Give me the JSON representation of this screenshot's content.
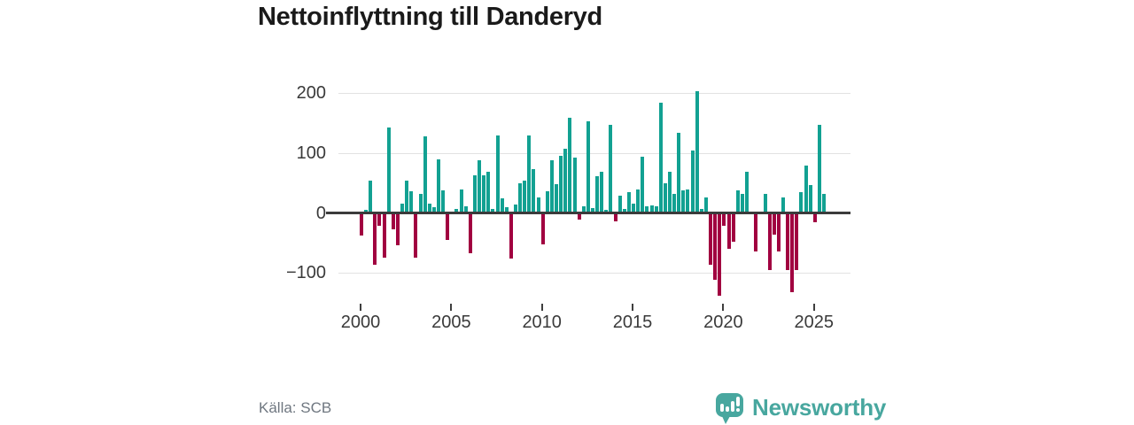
{
  "header": {
    "title": "Nettoinflyttning till Danderyd"
  },
  "footer": {
    "source_label": "Källa: SCB",
    "brand_name": "Newsworthy"
  },
  "colors": {
    "positive": "#12A192",
    "negative": "#A10040",
    "grid": "#E2E2E2",
    "zero_line": "#3B3B3B",
    "title_text": "#1A1A1A",
    "tick_text": "#3A3A3A",
    "source_text": "#6F7780",
    "brand_teal": "#48A79F",
    "background": "#FFFFFF"
  },
  "chart_data": {
    "type": "bar",
    "title": "Nettoinflyttning till Danderyd",
    "xlabel": "",
    "ylabel": "",
    "frequency": "quarterly",
    "x_start": "2000-Q1",
    "x_end": "2025-Q3",
    "xticks": [
      "2000",
      "2005",
      "2010",
      "2015",
      "2020",
      "2025"
    ],
    "yticks": [
      200,
      100,
      0,
      -100
    ],
    "ytick_labels": [
      "200",
      "100",
      "0",
      "−100"
    ],
    "ylim": [
      -150,
      215
    ],
    "grid": true,
    "legend": false,
    "series": [
      {
        "name": "Nettoinflyttning",
        "values": [
          -37,
          6,
          55,
          -85,
          -20,
          -74,
          143,
          -26,
          -53,
          16,
          54,
          37,
          -74,
          33,
          128,
          16,
          10,
          90,
          39,
          -45,
          2,
          7,
          40,
          12,
          -66,
          64,
          88,
          63,
          70,
          7,
          130,
          25,
          10,
          -76,
          15,
          50,
          54,
          130,
          74,
          26,
          -52,
          37,
          88,
          48,
          96,
          108,
          159,
          93,
          -10,
          12,
          153,
          9,
          62,
          69,
          6,
          147,
          -14,
          30,
          7,
          35,
          16,
          40,
          95,
          12,
          14,
          12,
          185,
          50,
          69,
          32,
          134,
          38,
          40,
          105,
          204,
          7,
          26,
          -86,
          -111,
          -138,
          -21,
          -59,
          -47,
          38,
          33,
          70,
          2,
          -63,
          2,
          33,
          -95,
          -35,
          -63,
          26,
          -94,
          -132,
          -94,
          35,
          80,
          47,
          -15,
          147,
          33
        ]
      }
    ]
  }
}
